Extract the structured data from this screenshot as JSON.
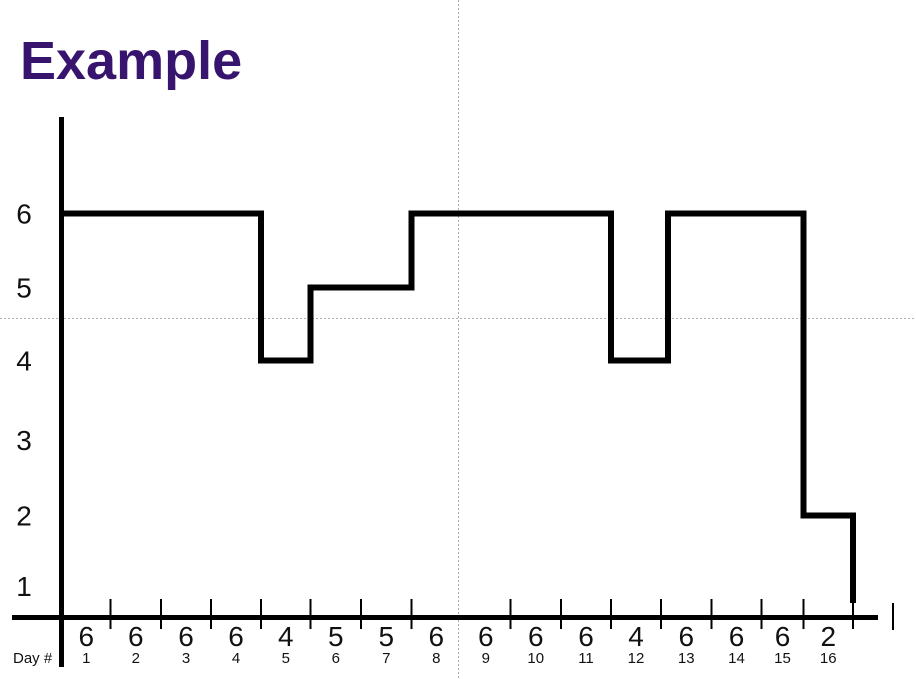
{
  "title": "Example",
  "colors": {
    "title_text": "#37146E",
    "chart_line": "#000000",
    "axis": "#000000",
    "label_text": "#111111",
    "guide_line": "#ABABAB",
    "background": "#FFFFFF"
  },
  "chart_data": {
    "type": "line",
    "line_style": "step",
    "title": "Example",
    "x_axis_label": "Day #",
    "categories": [
      1,
      2,
      3,
      4,
      5,
      6,
      7,
      8,
      9,
      10,
      11,
      12,
      13,
      14,
      15,
      16
    ],
    "values": [
      6,
      6,
      6,
      6,
      4,
      5,
      5,
      6,
      6,
      6,
      6,
      4,
      6,
      6,
      6,
      2
    ],
    "y_tick_labels": [
      6,
      5,
      4,
      3,
      2,
      1
    ],
    "ylim": [
      0,
      7
    ],
    "xlim_days": [
      1,
      16
    ],
    "grid": "off",
    "legend": "none",
    "ticks_after_days": [
      1,
      2,
      3,
      4,
      5,
      6,
      7,
      9,
      10,
      11,
      12,
      13,
      14,
      15,
      16
    ],
    "extra_tick_right_of_axis": true,
    "end_drop_after_last_day_to_value": 1,
    "guides": {
      "vertical": true,
      "horizontal": true
    }
  }
}
